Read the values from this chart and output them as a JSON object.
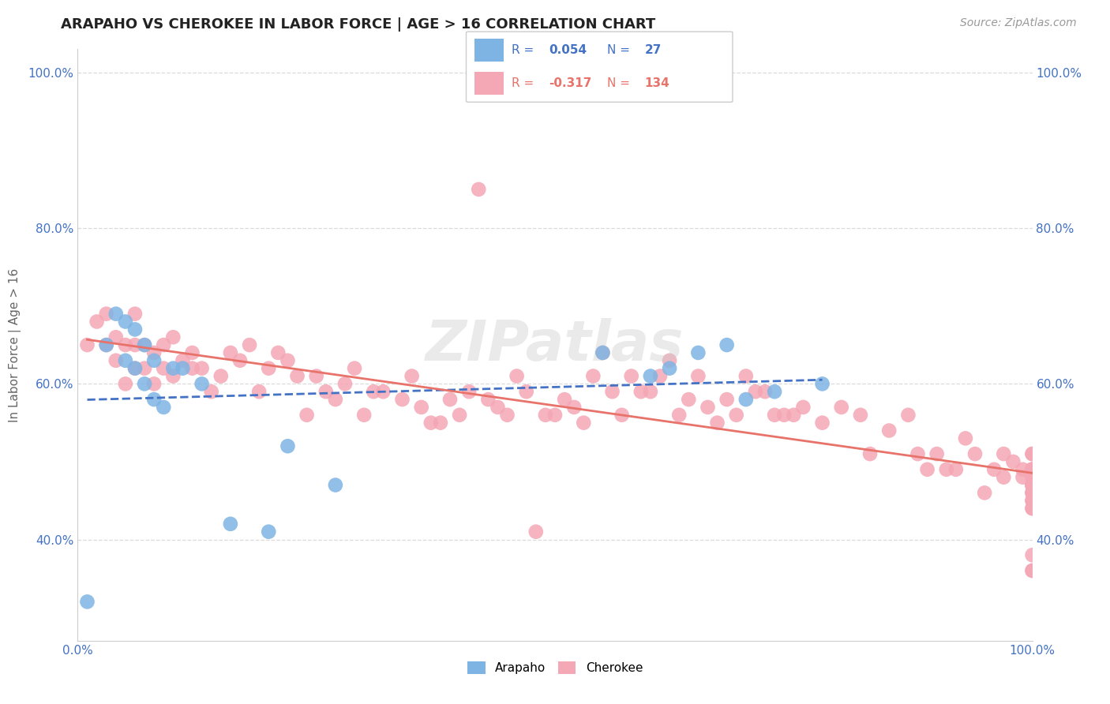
{
  "title": "ARAPAHO VS CHEROKEE IN LABOR FORCE | AGE > 16 CORRELATION CHART",
  "source": "Source: ZipAtlas.com",
  "ylabel": "In Labor Force | Age > 16",
  "xlim": [
    0.0,
    1.0
  ],
  "ylim": [
    0.27,
    1.03
  ],
  "arapaho_color": "#7EB4E3",
  "cherokee_color": "#F4A7B5",
  "arapaho_line_color": "#4472C4",
  "cherokee_line_color": "#E8736A",
  "arapaho_R": 0.054,
  "arapaho_N": 27,
  "cherokee_R": -0.317,
  "cherokee_N": 134,
  "watermark": "ZIPatlas",
  "arapaho_x": [
    0.01,
    0.03,
    0.04,
    0.05,
    0.05,
    0.06,
    0.06,
    0.07,
    0.07,
    0.08,
    0.08,
    0.09,
    0.1,
    0.11,
    0.13,
    0.16,
    0.2,
    0.22,
    0.27,
    0.55,
    0.6,
    0.62,
    0.65,
    0.68,
    0.7,
    0.73,
    0.78
  ],
  "arapaho_y": [
    0.32,
    0.65,
    0.69,
    0.63,
    0.68,
    0.62,
    0.67,
    0.6,
    0.65,
    0.63,
    0.58,
    0.57,
    0.62,
    0.62,
    0.6,
    0.42,
    0.41,
    0.52,
    0.47,
    0.64,
    0.61,
    0.62,
    0.64,
    0.65,
    0.58,
    0.59,
    0.6
  ],
  "cherokee_x": [
    0.01,
    0.02,
    0.03,
    0.03,
    0.04,
    0.04,
    0.05,
    0.05,
    0.06,
    0.06,
    0.06,
    0.07,
    0.07,
    0.08,
    0.08,
    0.09,
    0.09,
    0.1,
    0.1,
    0.11,
    0.12,
    0.12,
    0.13,
    0.14,
    0.15,
    0.16,
    0.17,
    0.18,
    0.19,
    0.2,
    0.21,
    0.22,
    0.23,
    0.24,
    0.25,
    0.26,
    0.27,
    0.28,
    0.29,
    0.3,
    0.31,
    0.32,
    0.34,
    0.35,
    0.36,
    0.37,
    0.38,
    0.39,
    0.4,
    0.41,
    0.42,
    0.43,
    0.44,
    0.45,
    0.46,
    0.47,
    0.48,
    0.49,
    0.5,
    0.51,
    0.52,
    0.53,
    0.54,
    0.55,
    0.56,
    0.57,
    0.58,
    0.59,
    0.6,
    0.61,
    0.62,
    0.63,
    0.64,
    0.65,
    0.66,
    0.67,
    0.68,
    0.69,
    0.7,
    0.71,
    0.72,
    0.73,
    0.74,
    0.75,
    0.76,
    0.78,
    0.8,
    0.82,
    0.83,
    0.85,
    0.87,
    0.88,
    0.89,
    0.9,
    0.91,
    0.92,
    0.93,
    0.94,
    0.95,
    0.96,
    0.97,
    0.97,
    0.98,
    0.99,
    0.99,
    1.0,
    1.0,
    1.0,
    1.0,
    1.0,
    1.0,
    1.0,
    1.0,
    1.0,
    1.0,
    1.0,
    1.0,
    1.0,
    1.0,
    1.0,
    1.0,
    1.0,
    1.0,
    1.0,
    1.0,
    1.0,
    1.0,
    1.0,
    1.0,
    1.0,
    1.0,
    1.0,
    1.0,
    1.0
  ],
  "cherokee_y": [
    0.65,
    0.68,
    0.65,
    0.69,
    0.63,
    0.66,
    0.6,
    0.65,
    0.62,
    0.65,
    0.69,
    0.62,
    0.65,
    0.6,
    0.64,
    0.62,
    0.65,
    0.61,
    0.66,
    0.63,
    0.64,
    0.62,
    0.62,
    0.59,
    0.61,
    0.64,
    0.63,
    0.65,
    0.59,
    0.62,
    0.64,
    0.63,
    0.61,
    0.56,
    0.61,
    0.59,
    0.58,
    0.6,
    0.62,
    0.56,
    0.59,
    0.59,
    0.58,
    0.61,
    0.57,
    0.55,
    0.55,
    0.58,
    0.56,
    0.59,
    0.85,
    0.58,
    0.57,
    0.56,
    0.61,
    0.59,
    0.41,
    0.56,
    0.56,
    0.58,
    0.57,
    0.55,
    0.61,
    0.64,
    0.59,
    0.56,
    0.61,
    0.59,
    0.59,
    0.61,
    0.63,
    0.56,
    0.58,
    0.61,
    0.57,
    0.55,
    0.58,
    0.56,
    0.61,
    0.59,
    0.59,
    0.56,
    0.56,
    0.56,
    0.57,
    0.55,
    0.57,
    0.56,
    0.51,
    0.54,
    0.56,
    0.51,
    0.49,
    0.51,
    0.49,
    0.49,
    0.53,
    0.51,
    0.46,
    0.49,
    0.51,
    0.48,
    0.5,
    0.49,
    0.48,
    0.51,
    0.49,
    0.47,
    0.51,
    0.49,
    0.47,
    0.38,
    0.45,
    0.47,
    0.46,
    0.49,
    0.36,
    0.47,
    0.48,
    0.49,
    0.46,
    0.44,
    0.48,
    0.47,
    0.49,
    0.36,
    0.47,
    0.48,
    0.49,
    0.46,
    0.44,
    0.48,
    0.47,
    0.45
  ]
}
